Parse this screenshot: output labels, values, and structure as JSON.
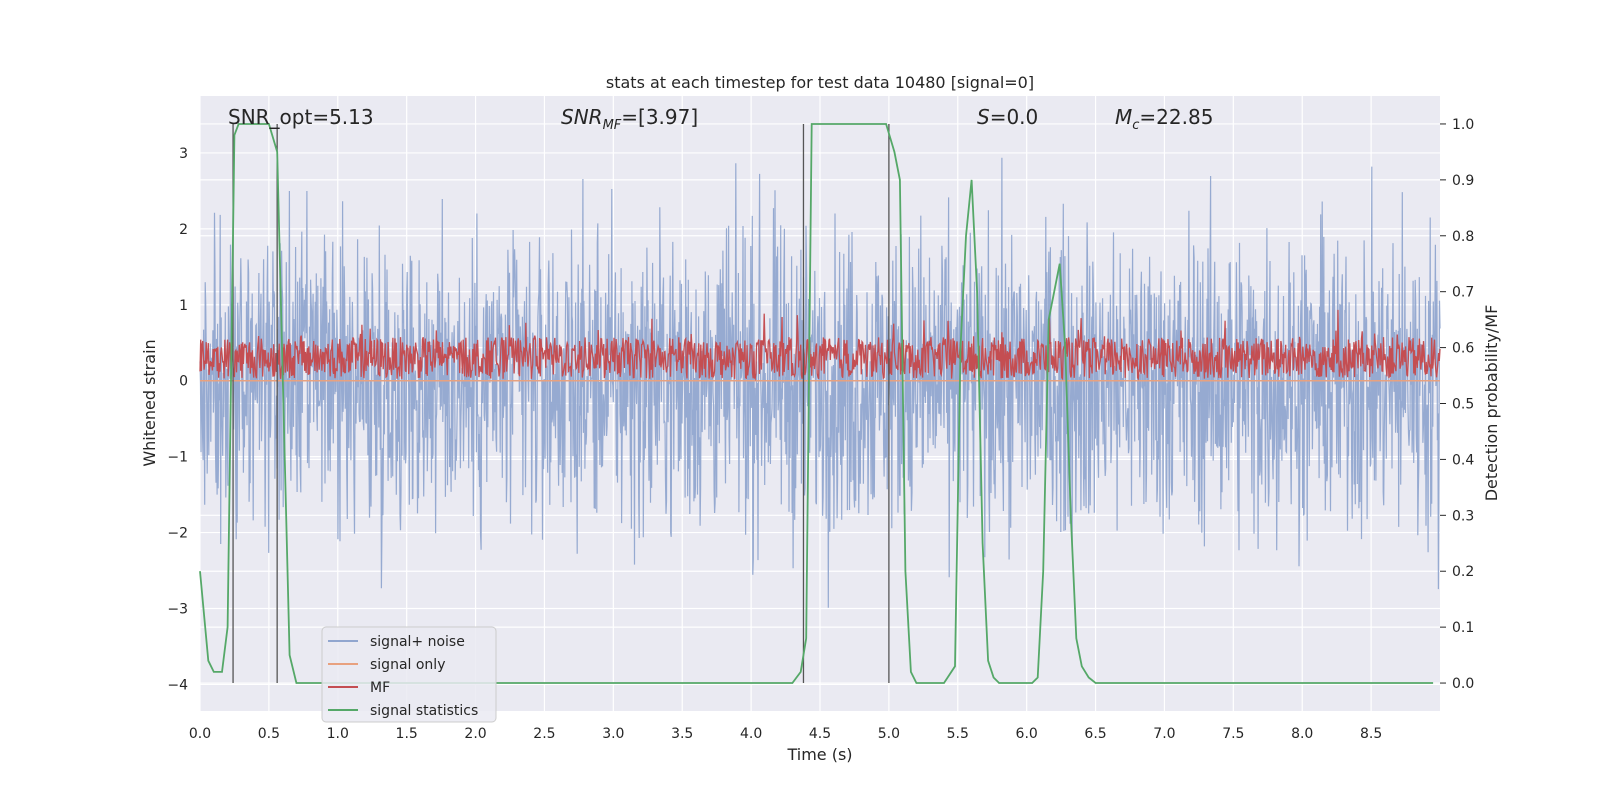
{
  "chart_data": {
    "type": "line",
    "title": "stats at each timestep for test data 10480 [signal=0]",
    "xlabel": "Time (s)",
    "ylabel_left": "Whitened strain",
    "ylabel_right": "Detection probability/MF",
    "xlim": [
      0.0,
      9.0
    ],
    "ylim_left": [
      -4.35,
      3.75
    ],
    "ylim_right": [
      -0.05,
      1.05
    ],
    "x_ticks": [
      "0.0",
      "0.5",
      "1.0",
      "1.5",
      "2.0",
      "2.5",
      "3.0",
      "3.5",
      "4.0",
      "4.5",
      "5.0",
      "5.5",
      "6.0",
      "6.5",
      "7.0",
      "7.5",
      "8.0",
      "8.5"
    ],
    "y_ticks_left": [
      "3",
      "2",
      "1",
      "0",
      "−1",
      "−2",
      "−3",
      "−4"
    ],
    "y_ticks_right": [
      "1.0",
      "0.9",
      "0.8",
      "0.7",
      "0.6",
      "0.5",
      "0.4",
      "0.3",
      "0.2",
      "0.1",
      "0.0"
    ],
    "grid": true,
    "legend_placement": "lower-left",
    "annotations": {
      "snr_opt": "SNR_opt=5.13",
      "snr_mf_main": "SNR",
      "snr_mf_sub": "MF",
      "snr_mf_value": "=[3.97]",
      "s_main": "S",
      "s_value": "=0.0",
      "mc_main": "M",
      "mc_sub": "c",
      "mc_value": "=22.85"
    },
    "series": [
      {
        "name": "signal+ noise",
        "color": "#91a6cf",
        "axis": "left",
        "description_values": "noise, approx. -4 to 3.1"
      },
      {
        "name": "signal only",
        "color": "#e8a17f",
        "axis": "left",
        "values_constant": 0.0
      },
      {
        "name": "MF",
        "color": "#c44e52",
        "axis": "left",
        "values_range": [
          0.0,
          0.95
        ]
      },
      {
        "name": "signal statistics",
        "color": "#55a868",
        "axis": "right",
        "x": [
          0.0,
          0.06,
          0.1,
          0.16,
          0.2,
          0.25,
          0.28,
          0.31,
          0.36,
          0.4,
          0.46,
          0.5,
          0.56,
          0.6,
          0.65,
          0.7,
          0.76,
          0.8,
          0.86,
          0.9,
          1.0,
          1.5,
          2.0,
          2.5,
          3.0,
          3.5,
          4.0,
          4.3,
          4.36,
          4.4,
          4.44,
          4.5,
          4.9,
          4.98,
          5.04,
          5.08,
          5.12,
          5.16,
          5.2,
          5.3,
          5.4,
          5.48,
          5.52,
          5.56,
          5.6,
          5.64,
          5.68,
          5.72,
          5.76,
          5.8,
          5.86,
          5.92,
          5.98,
          6.04,
          6.08,
          6.12,
          6.16,
          6.2,
          6.24,
          6.28,
          6.32,
          6.36,
          6.4,
          6.45,
          6.5,
          6.6,
          7.0,
          8.0,
          8.95
        ],
        "y": [
          0.2,
          0.04,
          0.02,
          0.02,
          0.1,
          0.98,
          1.0,
          1.0,
          1.0,
          1.0,
          1.0,
          1.0,
          0.95,
          0.55,
          0.05,
          0.0,
          0.0,
          0.0,
          0.0,
          0.0,
          0.0,
          0.0,
          0.0,
          0.0,
          0.0,
          0.0,
          0.0,
          0.0,
          0.02,
          0.08,
          1.0,
          1.0,
          1.0,
          1.0,
          0.95,
          0.9,
          0.2,
          0.02,
          0.0,
          0.0,
          0.0,
          0.03,
          0.6,
          0.8,
          0.9,
          0.7,
          0.25,
          0.04,
          0.01,
          0.0,
          0.0,
          0.0,
          0.0,
          0.0,
          0.01,
          0.2,
          0.65,
          0.7,
          0.75,
          0.6,
          0.3,
          0.08,
          0.03,
          0.01,
          0.0,
          0.0,
          0.0,
          0.0,
          0.0
        ]
      }
    ],
    "vertical_markers_x": [
      0.24,
      0.56,
      4.38,
      5.0
    ]
  }
}
